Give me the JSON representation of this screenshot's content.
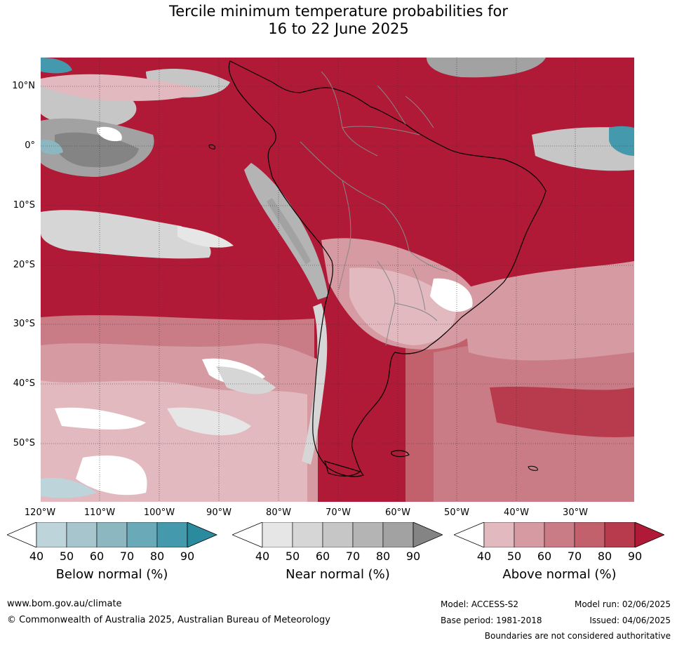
{
  "title": {
    "line1": "Tercile minimum temperature probabilities for",
    "line2": "16 to 22 June 2025"
  },
  "map": {
    "lat_labels": [
      "10°N",
      "0°",
      "10°S",
      "20°S",
      "30°S",
      "40°S",
      "50°S"
    ],
    "lon_labels": [
      "120°W",
      "110°W",
      "100°W",
      "90°W",
      "80°W",
      "70°W",
      "60°W",
      "50°W",
      "40°W",
      "30°W"
    ],
    "colors": {
      "above": [
        "#e2b9be",
        "#d69aa2",
        "#ca7c86",
        "#c2606c",
        "#b83a4d",
        "#b01a37"
      ],
      "near": [
        "#e6e6e6",
        "#d6d6d6",
        "#c6c6c6",
        "#b4b4b4",
        "#a2a2a2",
        "#848484"
      ],
      "below": [
        "#bdd4da",
        "#a6c5cd",
        "#8cb7c1",
        "#6aa9b7",
        "#4499ad",
        "#2a8a9e"
      ],
      "white": "#ffffff",
      "coast": "#000000",
      "borders": "#888888"
    }
  },
  "legends": [
    {
      "title": "Below normal (%)",
      "ticks": [
        "40",
        "50",
        "60",
        "70",
        "80",
        "90"
      ],
      "colors": [
        "#bdd4da",
        "#a6c5cd",
        "#8cb7c1",
        "#6aa9b7",
        "#4499ad",
        "#2a8a9e"
      ]
    },
    {
      "title": "Near normal (%)",
      "ticks": [
        "40",
        "50",
        "60",
        "70",
        "80",
        "90"
      ],
      "colors": [
        "#e6e6e6",
        "#d6d6d6",
        "#c6c6c6",
        "#b4b4b4",
        "#a2a2a2",
        "#848484"
      ]
    },
    {
      "title": "Above normal (%)",
      "ticks": [
        "40",
        "50",
        "60",
        "70",
        "80",
        "90"
      ],
      "colors": [
        "#e2b9be",
        "#d69aa2",
        "#ca7c86",
        "#c2606c",
        "#b83a4d",
        "#b01a37"
      ]
    }
  ],
  "footer": {
    "website": "www.bom.gov.au/climate",
    "copyright": "© Commonwealth of Australia 2025, Australian Bureau of Meteorology",
    "model": "Model: ACCESS-S2",
    "base_period": "Base period: 1981-2018",
    "model_run": "Model run: 02/06/2025",
    "issued": "Issued: 04/06/2025",
    "disclaimer": "Boundaries are not considered authoritative"
  }
}
